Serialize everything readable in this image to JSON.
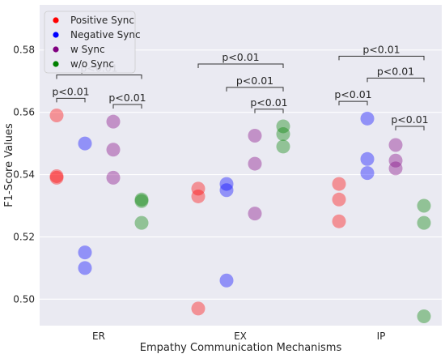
{
  "chart_data": {
    "type": "scatter",
    "title": "",
    "xlabel": "Empathy Communication Mechanisms",
    "ylabel": "F1-Score Values",
    "categories": [
      "ER",
      "EX",
      "IP"
    ],
    "ylim": [
      0.4915,
      0.5945
    ],
    "yticks": [
      0.5,
      0.52,
      0.54,
      0.56,
      0.58
    ],
    "ytick_labels": [
      "0.50",
      "0.52",
      "0.54",
      "0.56",
      "0.58"
    ],
    "grid": "horizontal",
    "background": "#eaeaf2",
    "legend_position": "top-left",
    "series": [
      {
        "name": "Positive Sync",
        "color": "#ff0000",
        "points": [
          {
            "cat": "ER",
            "y": 0.559
          },
          {
            "cat": "ER",
            "y": 0.5395
          },
          {
            "cat": "ER",
            "y": 0.539
          },
          {
            "cat": "EX",
            "y": 0.5355
          },
          {
            "cat": "EX",
            "y": 0.533
          },
          {
            "cat": "EX",
            "y": 0.497
          },
          {
            "cat": "IP",
            "y": 0.537
          },
          {
            "cat": "IP",
            "y": 0.532
          },
          {
            "cat": "IP",
            "y": 0.525
          }
        ]
      },
      {
        "name": "Negative Sync",
        "color": "#0000ff",
        "points": [
          {
            "cat": "ER",
            "y": 0.55
          },
          {
            "cat": "ER",
            "y": 0.515
          },
          {
            "cat": "ER",
            "y": 0.51
          },
          {
            "cat": "EX",
            "y": 0.537
          },
          {
            "cat": "EX",
            "y": 0.535
          },
          {
            "cat": "EX",
            "y": 0.506
          },
          {
            "cat": "IP",
            "y": 0.558
          },
          {
            "cat": "IP",
            "y": 0.545
          },
          {
            "cat": "IP",
            "y": 0.5405
          }
        ]
      },
      {
        "name": "w Sync",
        "color": "#800080",
        "points": [
          {
            "cat": "ER",
            "y": 0.557
          },
          {
            "cat": "ER",
            "y": 0.548
          },
          {
            "cat": "ER",
            "y": 0.539
          },
          {
            "cat": "EX",
            "y": 0.5525
          },
          {
            "cat": "EX",
            "y": 0.5435
          },
          {
            "cat": "EX",
            "y": 0.5275
          },
          {
            "cat": "IP",
            "y": 0.5495
          },
          {
            "cat": "IP",
            "y": 0.5445
          },
          {
            "cat": "IP",
            "y": 0.542
          }
        ]
      },
      {
        "name": "w/o Sync",
        "color": "#008000",
        "points": [
          {
            "cat": "ER",
            "y": 0.532
          },
          {
            "cat": "ER",
            "y": 0.5315
          },
          {
            "cat": "ER",
            "y": 0.5245
          },
          {
            "cat": "EX",
            "y": 0.5555
          },
          {
            "cat": "EX",
            "y": 0.553
          },
          {
            "cat": "EX",
            "y": 0.549
          },
          {
            "cat": "IP",
            "y": 0.53
          },
          {
            "cat": "IP",
            "y": 0.5245
          },
          {
            "cat": "IP",
            "y": 0.4945
          }
        ]
      }
    ],
    "annotations": [
      {
        "text": "p<0.01",
        "cat": "ER",
        "from_series": "Positive Sync",
        "to_series": "Negative Sync",
        "y": 0.5645
      },
      {
        "text": "p<0.01",
        "cat": "ER",
        "from_series": "w Sync",
        "to_series": "w/o Sync",
        "y": 0.5625
      },
      {
        "text": "p<0.01",
        "cat": "ER",
        "from_series": "Positive Sync",
        "to_series": "w/o Sync",
        "y": 0.572
      },
      {
        "text": "p<0.01",
        "cat": "EX",
        "from_series": "Positive Sync",
        "to_series": "w/o Sync",
        "y": 0.5755
      },
      {
        "text": "p<0.01",
        "cat": "EX",
        "from_series": "Negative Sync",
        "to_series": "w/o Sync",
        "y": 0.568
      },
      {
        "text": "p<0.01",
        "cat": "EX",
        "from_series": "w Sync",
        "to_series": "w/o Sync",
        "y": 0.561
      },
      {
        "text": "p<0.01",
        "cat": "IP",
        "from_series": "Positive Sync",
        "to_series": "w/o Sync",
        "y": 0.578
      },
      {
        "text": "p<0.01",
        "cat": "IP",
        "from_series": "Negative Sync",
        "to_series": "w/o Sync",
        "y": 0.571
      },
      {
        "text": "p<0.01",
        "cat": "IP",
        "from_series": "Positive Sync",
        "to_series": "Negative Sync",
        "y": 0.5635
      },
      {
        "text": "p<0.01",
        "cat": "IP",
        "from_series": "w Sync",
        "to_series": "w/o Sync",
        "y": 0.5555
      }
    ]
  }
}
